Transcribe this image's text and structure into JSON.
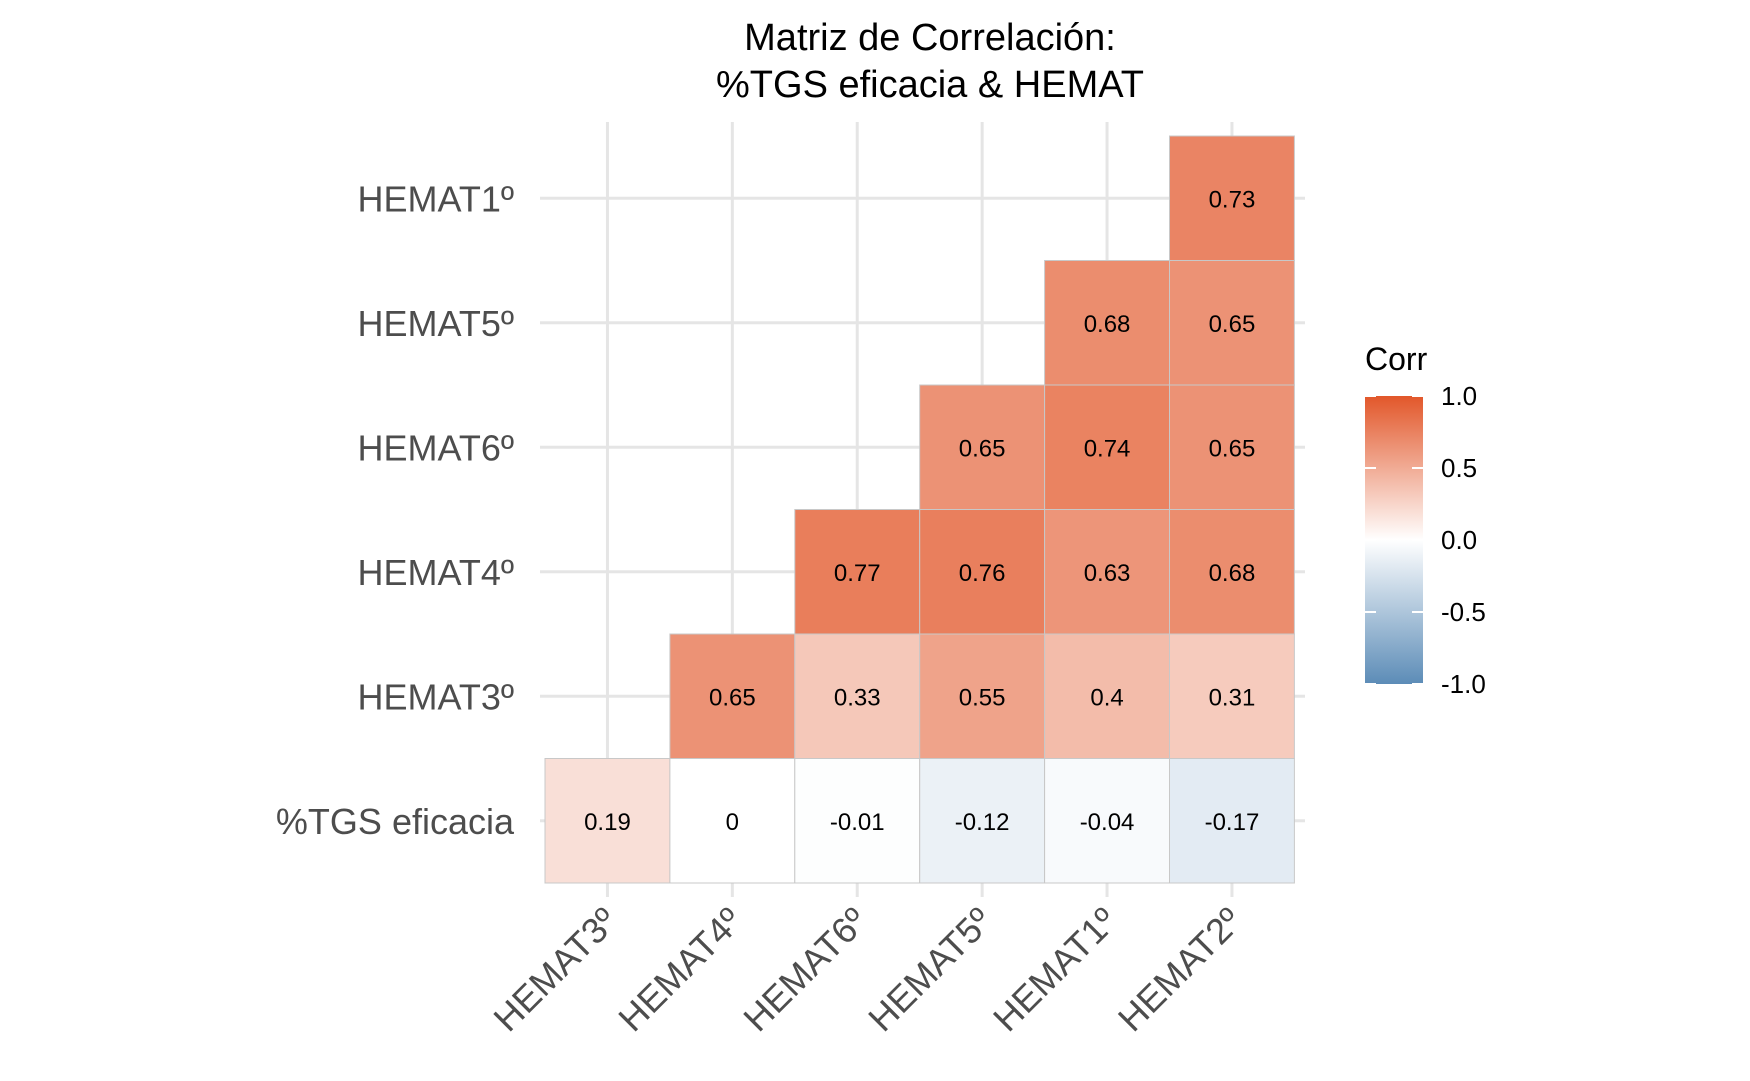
{
  "chart_data": {
    "type": "heatmap",
    "title_lines": [
      "Matriz de Correlación:",
      "%TGS eficacia & HEMAT"
    ],
    "x_categories": [
      "HEMAT3º",
      "HEMAT4º",
      "HEMAT6º",
      "HEMAT5º",
      "HEMAT1º",
      "HEMAT2º"
    ],
    "y_categories": [
      "%TGS eficacia",
      "HEMAT3º",
      "HEMAT4º",
      "HEMAT6º",
      "HEMAT5º",
      "HEMAT1º"
    ],
    "values": [
      [
        0.19,
        0,
        -0.01,
        -0.12,
        -0.04,
        -0.17
      ],
      [
        null,
        0.65,
        0.33,
        0.55,
        0.4,
        0.31
      ],
      [
        null,
        null,
        0.77,
        0.76,
        0.63,
        0.68
      ],
      [
        null,
        null,
        null,
        0.65,
        0.74,
        0.65
      ],
      [
        null,
        null,
        null,
        null,
        0.68,
        0.65
      ],
      [
        null,
        null,
        null,
        null,
        null,
        0.73
      ]
    ],
    "legend": {
      "title": "Corr",
      "range": [
        -1,
        1
      ],
      "ticks": [
        1.0,
        0.5,
        0.0,
        -0.5,
        -1.0
      ],
      "tick_labels": [
        "1.0",
        "0.5",
        "0.0",
        "-0.5",
        "-1.0"
      ],
      "placement": "right"
    },
    "colors": {
      "low": "#5c8cb7",
      "mid": "#ffffff",
      "high": "#e2572a"
    },
    "grid": true
  }
}
